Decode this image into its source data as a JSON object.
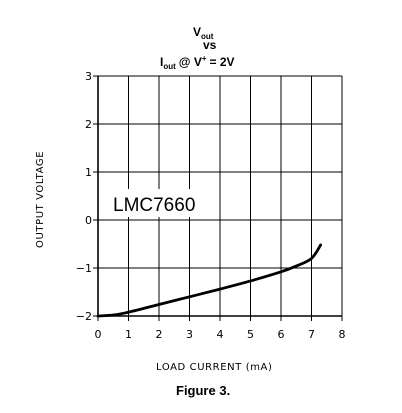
{
  "chart_data": {
    "type": "line",
    "title": {
      "line1_main": "V",
      "line1_sub": "out",
      "line2": "vs",
      "line3_main": "I",
      "line3_sub": "out",
      "line3_at": "@ V",
      "line3_sup": "+",
      "line3_end": "= 2V"
    },
    "xlabel": "LOAD CURRENT (mA)",
    "ylabel": "OUTPUT VOLTAGE",
    "xlim": [
      0,
      8
    ],
    "ylim": [
      -2,
      3
    ],
    "x_ticks": [
      0,
      1,
      2,
      3,
      4,
      5,
      6,
      7,
      8
    ],
    "y_ticks": [
      -2,
      -1,
      0,
      1,
      2,
      3
    ],
    "x_tick_labels": [
      "0",
      "1",
      "2",
      "3",
      "4",
      "5",
      "6",
      "7",
      "8"
    ],
    "y_tick_labels": [
      "−2",
      "−1",
      "0",
      "1",
      "2",
      "3"
    ],
    "grid": true,
    "annotation": "LMC7660",
    "series": [
      {
        "color": "#000000",
        "points": [
          [
            0,
            -2.0
          ],
          [
            0.5,
            -1.98
          ],
          [
            1,
            -1.92
          ],
          [
            2,
            -1.76
          ],
          [
            3,
            -1.6
          ],
          [
            4,
            -1.44
          ],
          [
            5,
            -1.27
          ],
          [
            6,
            -1.08
          ],
          [
            6.5,
            -0.96
          ],
          [
            7,
            -0.8
          ],
          [
            7.3,
            -0.52
          ]
        ]
      }
    ]
  },
  "caption": "Figure 3.",
  "colors": {
    "annotation": "#1f2fb5",
    "grid": "#000000",
    "curve": "#000000"
  }
}
